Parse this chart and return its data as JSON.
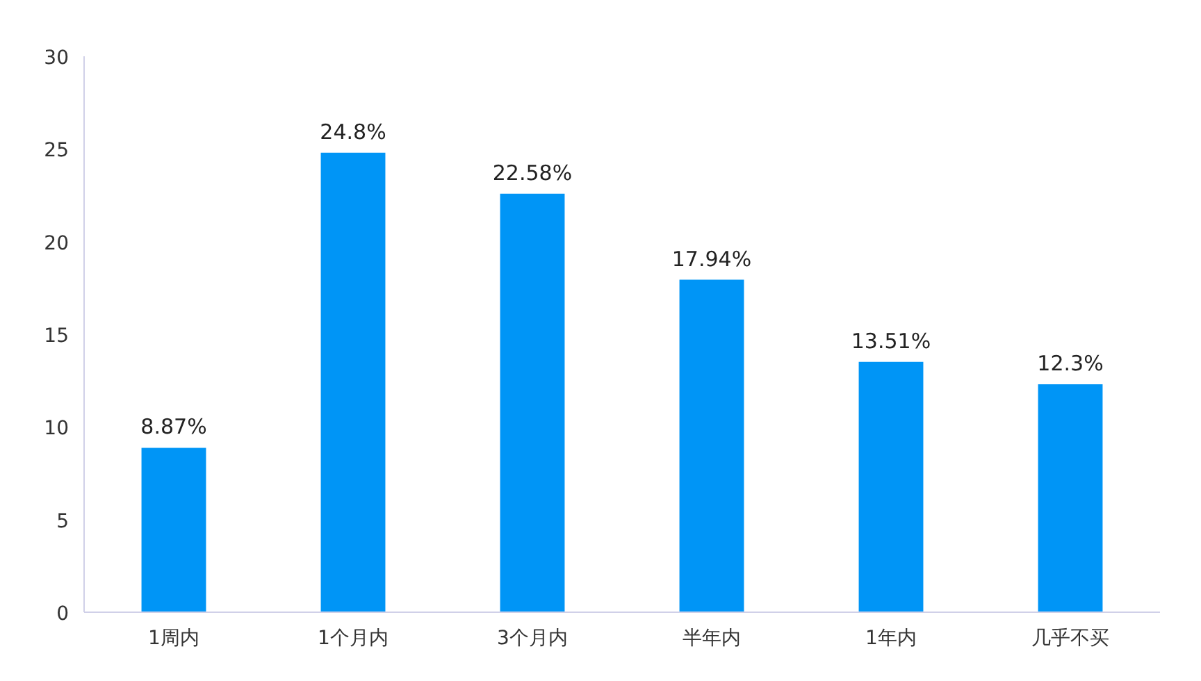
{
  "chart_data": {
    "type": "bar",
    "categories": [
      "1周内",
      "1个月内",
      "3个月内",
      "半年内",
      "1年内",
      "几乎不买"
    ],
    "values": [
      8.87,
      24.8,
      22.58,
      17.94,
      13.51,
      12.3
    ],
    "value_labels": [
      "8.87%",
      "24.8%",
      "22.58%",
      "17.94%",
      "13.51%",
      "12.3%"
    ],
    "color": "#0095f6",
    "ylim": [
      0,
      30
    ],
    "yticks": [
      0,
      5,
      10,
      15,
      20,
      25,
      30
    ],
    "grid": false
  }
}
